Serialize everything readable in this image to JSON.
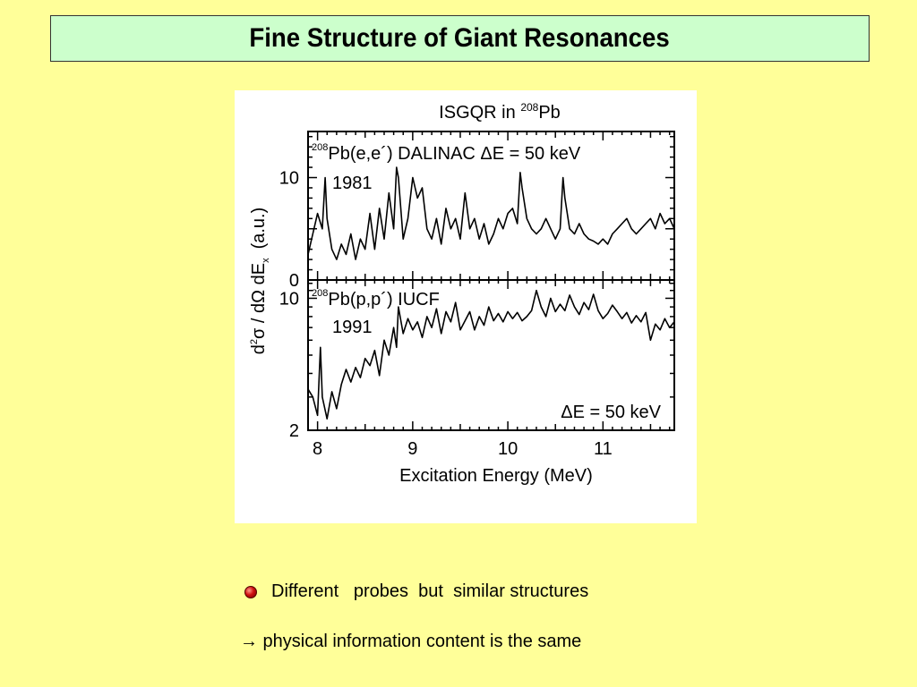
{
  "slide": {
    "title": "Fine Structure of Giant Resonances",
    "bullet": "Different   probes  but  similar structures",
    "conclusion": "→ physical information content is the same"
  },
  "colors": {
    "background": "#ffff99",
    "title_box": "#ccffcc",
    "bullet": "#d01010"
  },
  "chart_data": {
    "type": "line",
    "title_main": "ISGQR in ",
    "title_sup": "208",
    "title_end": "Pb",
    "xlabel": "Excitation Energy (MeV)",
    "ylabel_parts": {
      "d": "d",
      "sup2": "2",
      "sigma": "σ / dΩ dE",
      "subx": "x",
      "units": "(a.u.)"
    },
    "xlim": [
      7.9,
      11.75
    ],
    "x_ticks": [
      "8",
      "9",
      "10",
      "11"
    ],
    "panels": [
      {
        "label_sup": "208",
        "label": "Pb(e,e´)   DALINAC  ΔE = 50 keV",
        "year": "1981",
        "y_ticks": [
          "10",
          "0"
        ],
        "ylim": [
          0,
          14.5
        ],
        "series": {
          "x": [
            7.9,
            7.95,
            8.0,
            8.05,
            8.08,
            8.1,
            8.15,
            8.2,
            8.25,
            8.3,
            8.35,
            8.4,
            8.45,
            8.5,
            8.55,
            8.6,
            8.65,
            8.7,
            8.75,
            8.8,
            8.83,
            8.85,
            8.9,
            8.95,
            9.0,
            9.05,
            9.1,
            9.15,
            9.2,
            9.25,
            9.3,
            9.35,
            9.4,
            9.45,
            9.5,
            9.55,
            9.6,
            9.65,
            9.7,
            9.75,
            9.8,
            9.85,
            9.9,
            9.95,
            10.0,
            10.05,
            10.1,
            10.13,
            10.15,
            10.2,
            10.25,
            10.3,
            10.35,
            10.4,
            10.45,
            10.5,
            10.55,
            10.58,
            10.6,
            10.65,
            10.7,
            10.75,
            10.8,
            10.85,
            10.9,
            10.95,
            11.0,
            11.05,
            11.1,
            11.15,
            11.2,
            11.25,
            11.3,
            11.35,
            11.4,
            11.45,
            11.5,
            11.55,
            11.6,
            11.65,
            11.7,
            11.75
          ],
          "y": [
            2.5,
            4.5,
            6.5,
            5,
            10,
            6,
            3,
            2,
            3.5,
            2.5,
            4.5,
            2,
            4,
            3,
            6.5,
            3,
            7,
            4,
            8.5,
            5,
            11,
            10,
            4,
            6,
            10,
            8,
            9,
            5,
            4,
            6,
            3.5,
            7,
            5,
            6,
            4,
            8.5,
            5,
            6,
            4,
            5.5,
            3.5,
            4.5,
            6,
            5,
            6.5,
            7,
            5.5,
            10.5,
            9,
            6,
            5,
            4.5,
            5,
            6,
            5,
            4,
            5,
            10,
            8,
            5,
            4.5,
            5.5,
            4.5,
            4,
            3.8,
            3.5,
            4,
            3.5,
            4.5,
            5,
            5.5,
            6,
            5,
            4.5,
            5,
            5.5,
            6,
            5,
            6.5,
            5.5,
            6,
            5
          ]
        }
      },
      {
        "label_sup": "208",
        "label": "Pb(p,p´)   IUCF",
        "year": "1991",
        "energy_res": "ΔE = 50 keV",
        "y_ticks": [
          "10",
          "2"
        ],
        "ylim": [
          2,
          12.5
        ],
        "yscale": "log",
        "series": {
          "x": [
            7.9,
            7.95,
            8.0,
            8.03,
            8.05,
            8.1,
            8.15,
            8.2,
            8.25,
            8.3,
            8.35,
            8.4,
            8.45,
            8.5,
            8.55,
            8.6,
            8.65,
            8.7,
            8.75,
            8.8,
            8.83,
            8.85,
            8.9,
            8.95,
            9.0,
            9.05,
            9.1,
            9.15,
            9.2,
            9.25,
            9.3,
            9.35,
            9.4,
            9.45,
            9.5,
            9.55,
            9.6,
            9.65,
            9.7,
            9.75,
            9.8,
            9.85,
            9.9,
            9.95,
            10.0,
            10.05,
            10.1,
            10.15,
            10.2,
            10.25,
            10.3,
            10.35,
            10.4,
            10.45,
            10.5,
            10.55,
            10.6,
            10.65,
            10.7,
            10.75,
            10.8,
            10.85,
            10.9,
            10.95,
            11.0,
            11.05,
            11.1,
            11.15,
            11.2,
            11.25,
            11.3,
            11.35,
            11.4,
            11.45,
            11.5,
            11.55,
            11.6,
            11.65,
            11.7,
            11.75
          ],
          "y": [
            3.3,
            3.0,
            2.4,
            5.5,
            3.0,
            2.3,
            3.2,
            2.6,
            3.5,
            4.2,
            3.6,
            4.3,
            3.8,
            4.8,
            4.4,
            5.3,
            3.9,
            6.0,
            5.0,
            7.0,
            5.5,
            9.0,
            6.5,
            7.8,
            6.8,
            7.5,
            6.2,
            8.0,
            7.0,
            8.8,
            6.5,
            8.5,
            7.5,
            9.5,
            6.8,
            7.6,
            8.5,
            6.8,
            8.0,
            7.2,
            9.0,
            7.6,
            8.3,
            7.5,
            8.5,
            7.8,
            8.4,
            7.6,
            8.0,
            8.6,
            11.0,
            9.0,
            8.0,
            10.0,
            8.5,
            9.3,
            8.6,
            10.4,
            9.0,
            8.2,
            9.5,
            8.7,
            10.5,
            8.6,
            7.8,
            8.3,
            9.2,
            8.5,
            7.8,
            8.4,
            7.4,
            8.1,
            7.5,
            8.4,
            6.0,
            7.3,
            6.8,
            7.8,
            7.0,
            7.5
          ]
        }
      }
    ]
  }
}
